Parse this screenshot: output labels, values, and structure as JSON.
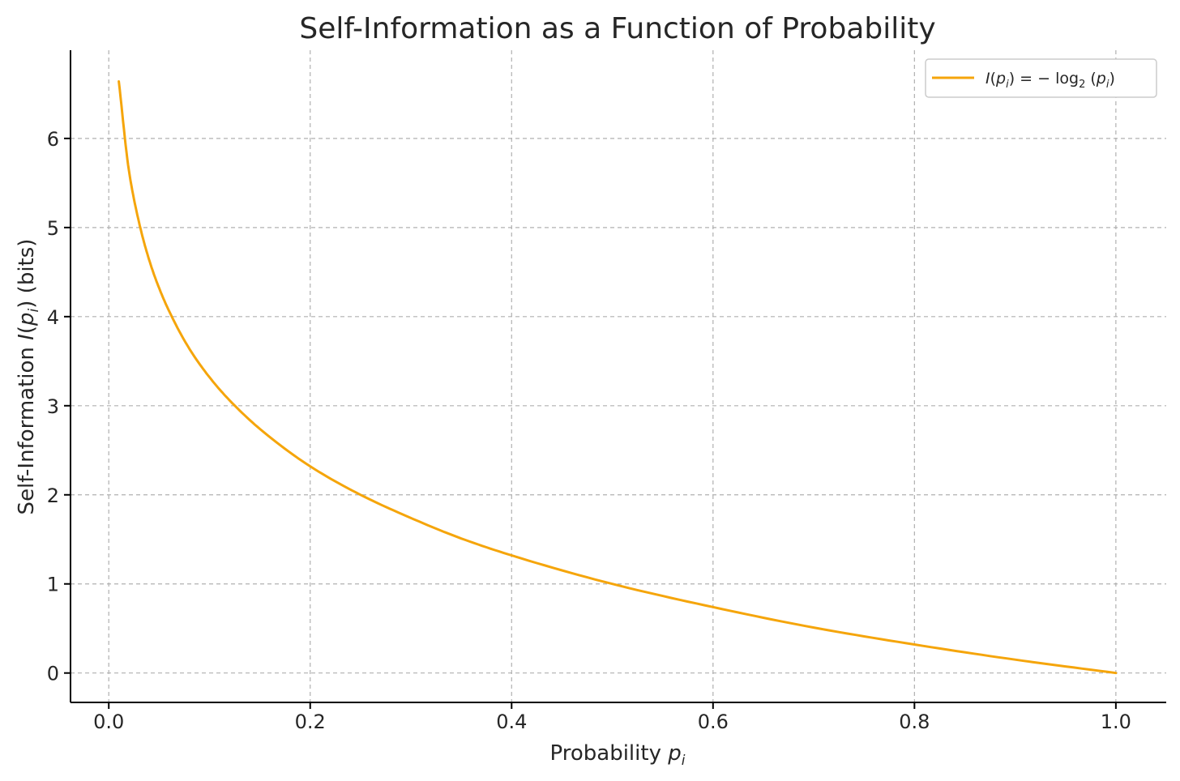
{
  "chart_data": {
    "type": "line",
    "title": "Self-Information as a Function of Probability",
    "xlabel": {
      "text": "Probability ",
      "sym": "p",
      "sub": "i"
    },
    "ylabel": {
      "pre": "Self-Information ",
      "sym": "I",
      "open": "(",
      "psym": "p",
      "sub": "i",
      "close": ")",
      "post": " (bits)"
    },
    "xlim": [
      -0.038,
      1.05
    ],
    "ylim": [
      -0.33,
      6.99
    ],
    "x_ticks": [
      0.0,
      0.2,
      0.4,
      0.6,
      0.8,
      1.0
    ],
    "x_tick_labels": [
      "0.0",
      "0.2",
      "0.4",
      "0.6",
      "0.8",
      "1.0"
    ],
    "y_ticks": [
      0,
      1,
      2,
      3,
      4,
      5,
      6
    ],
    "y_tick_labels": [
      "0",
      "1",
      "2",
      "3",
      "4",
      "5",
      "6"
    ],
    "grid": true,
    "legend_position": "top-right",
    "series": [
      {
        "name": "I(p_i) = −log_2(p_i)",
        "color": "#f5a50b",
        "x": [
          0.01,
          0.02,
          0.03,
          0.04,
          0.05,
          0.06,
          0.08,
          0.1,
          0.12,
          0.15,
          0.2,
          0.25,
          0.3,
          0.35,
          0.4,
          0.5,
          0.6,
          0.7,
          0.8,
          0.9,
          1.0
        ],
        "y": [
          6.64,
          5.64,
          5.06,
          4.64,
          4.32,
          4.06,
          3.64,
          3.32,
          3.06,
          2.74,
          2.32,
          2.0,
          1.74,
          1.51,
          1.32,
          1.0,
          0.74,
          0.51,
          0.32,
          0.15,
          0.0
        ]
      }
    ],
    "legend": {
      "sym": "I",
      "open": "(",
      "psym": "p",
      "sub": "i",
      "mid": ") = − log",
      "logsub": "2",
      "open2": " (",
      "psym2": "p",
      "sub2": "i",
      "close2": ")"
    }
  }
}
